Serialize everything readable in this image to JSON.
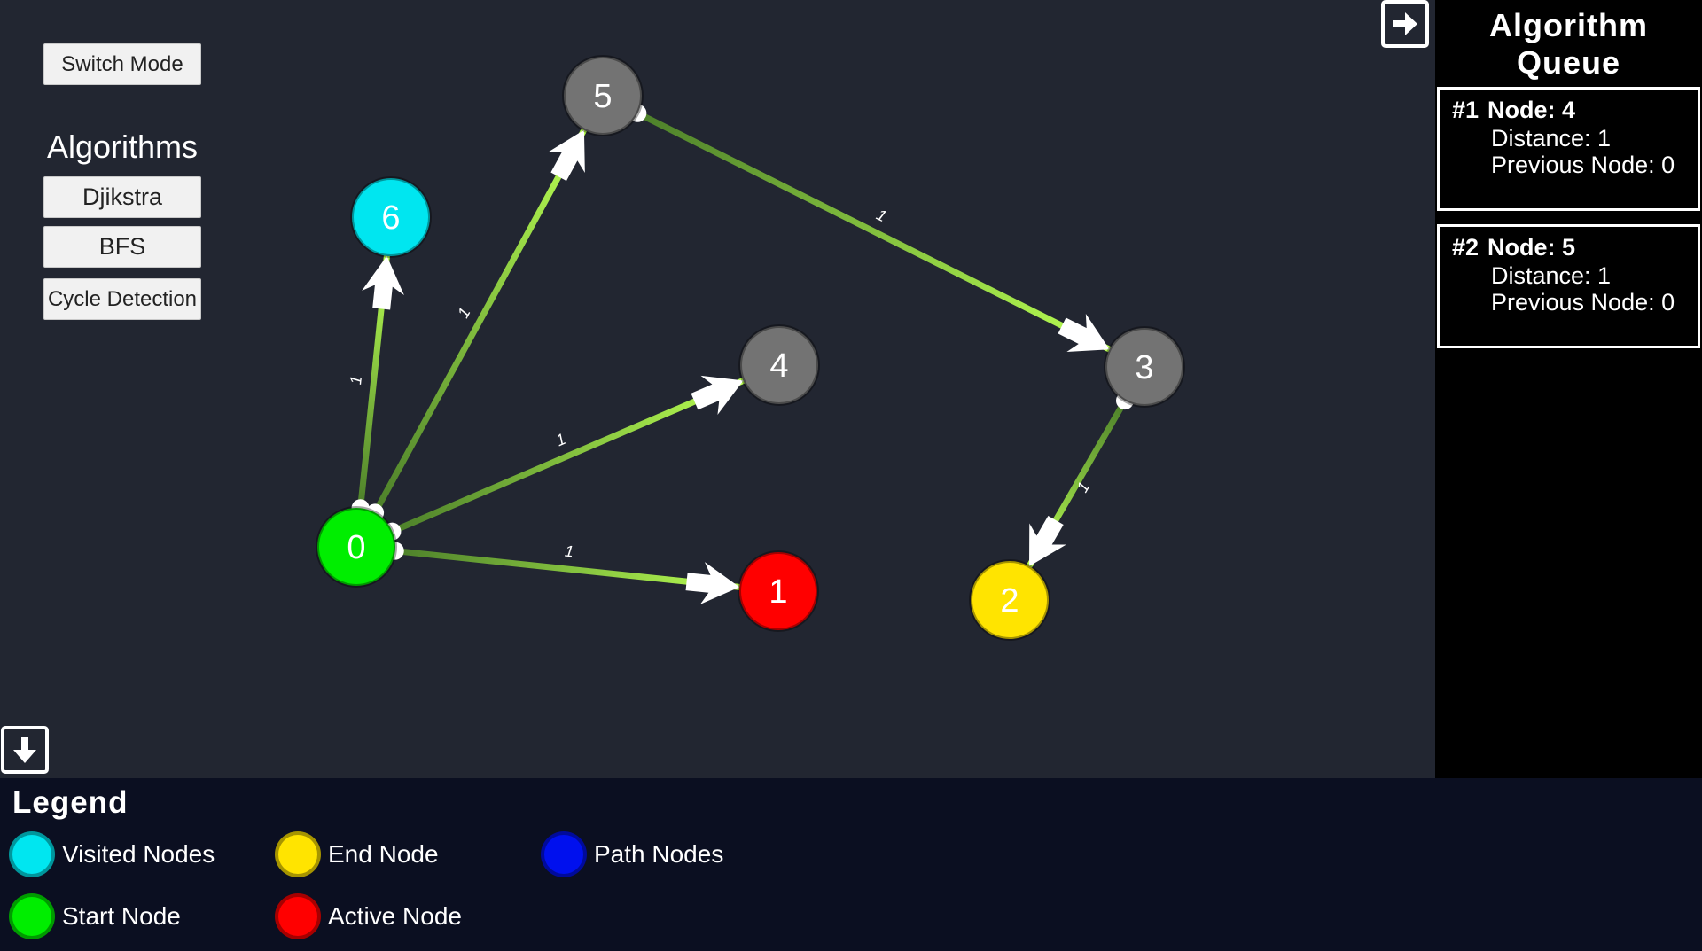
{
  "controls": {
    "switch_mode": "Switch Mode",
    "algorithms_title": "Algorithms",
    "buttons": [
      "Djikstra",
      "BFS",
      "Cycle Detection"
    ]
  },
  "graph": {
    "nodes": [
      {
        "id": "0",
        "label": "0",
        "state": "start",
        "color": "#00ee00"
      },
      {
        "id": "1",
        "label": "1",
        "state": "active",
        "color": "#ff0000"
      },
      {
        "id": "2",
        "label": "2",
        "state": "end",
        "color": "#ffe400"
      },
      {
        "id": "3",
        "label": "3",
        "state": "default",
        "color": "#737373"
      },
      {
        "id": "4",
        "label": "4",
        "state": "default",
        "color": "#737373"
      },
      {
        "id": "5",
        "label": "5",
        "state": "default",
        "color": "#737373"
      },
      {
        "id": "6",
        "label": "6",
        "state": "visited",
        "color": "#00e6f0"
      }
    ],
    "edges": [
      {
        "from": "0",
        "to": "6",
        "weight": "1"
      },
      {
        "from": "0",
        "to": "5",
        "weight": "1"
      },
      {
        "from": "0",
        "to": "4",
        "weight": "1"
      },
      {
        "from": "0",
        "to": "1",
        "weight": "1"
      },
      {
        "from": "5",
        "to": "3",
        "weight": "1"
      },
      {
        "from": "3",
        "to": "2",
        "weight": "1"
      }
    ]
  },
  "queue": {
    "title": "Algorithm Queue",
    "toggle_icon": "arrow-right-icon",
    "items": [
      {
        "rank": "#1",
        "node": "Node: 4",
        "distance": "Distance: 1",
        "previous": "Previous Node: 0"
      },
      {
        "rank": "#2",
        "node": "Node: 5",
        "distance": "Distance: 1",
        "previous": "Previous Node: 0"
      }
    ]
  },
  "legend": {
    "title": "Legend",
    "toggle_icon": "arrow-down-icon",
    "items": [
      {
        "label": "Visited Nodes",
        "color": "#00e6f0"
      },
      {
        "label": "End Node",
        "color": "#ffe400"
      },
      {
        "label": "Path Nodes",
        "color": "#0010ee"
      },
      {
        "label": "Start Node",
        "color": "#00ee00"
      },
      {
        "label": "Active Node",
        "color": "#ff0000"
      }
    ]
  }
}
